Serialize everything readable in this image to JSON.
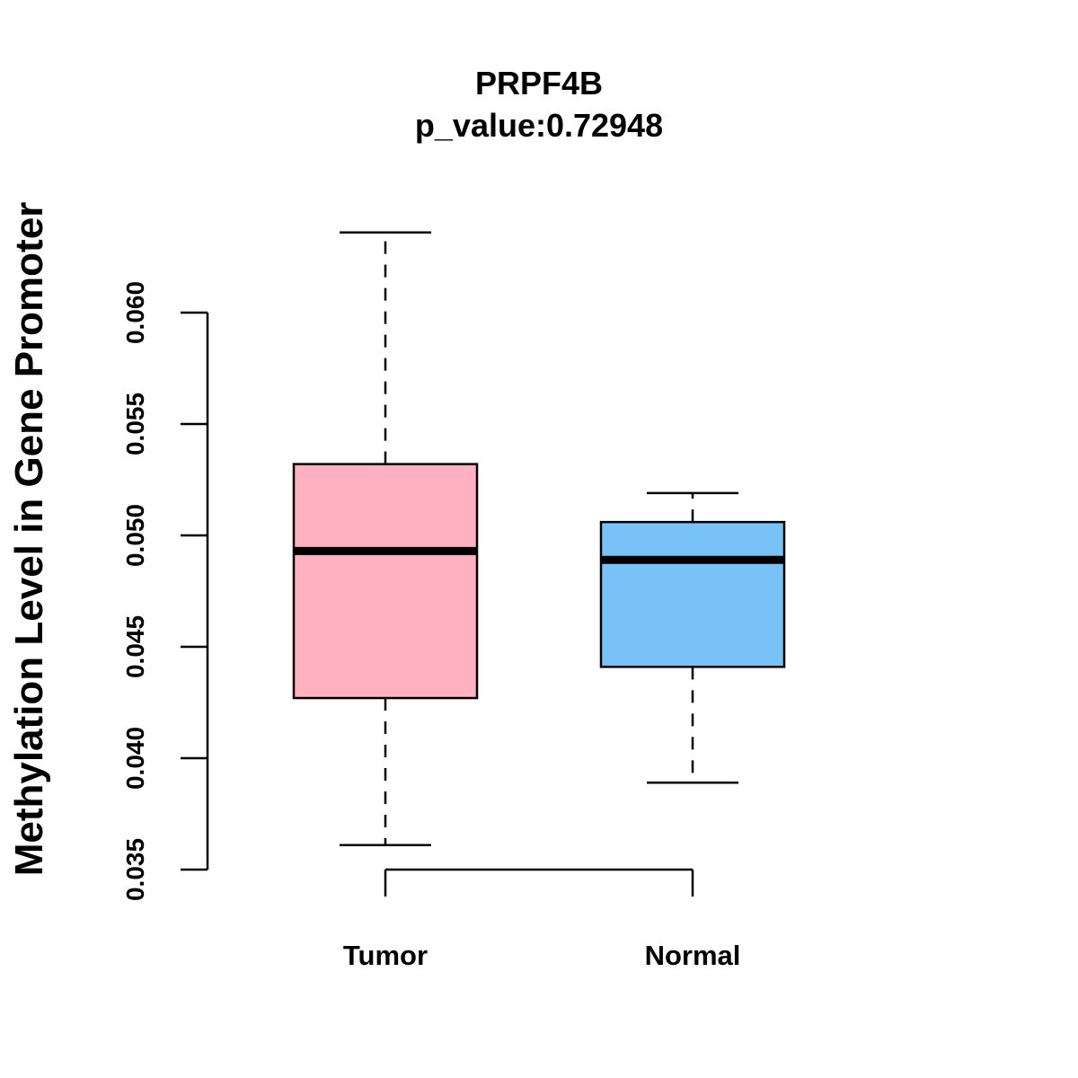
{
  "chart_data": {
    "type": "boxplot",
    "title": "PRPF4B",
    "subtitle": "p_value:0.72948",
    "xlabel": "",
    "ylabel": "Methylation Level in Gene Promoter",
    "ylim": [
      0.035,
      0.06
    ],
    "yticks": [
      0.035,
      0.04,
      0.045,
      0.05,
      0.055,
      0.06
    ],
    "ytick_labels": [
      "0.035",
      "0.040",
      "0.045",
      "0.050",
      "0.055",
      "0.060"
    ],
    "categories": [
      "Tumor",
      "Normal"
    ],
    "series": [
      {
        "name": "Tumor",
        "color": "#FFB0C1",
        "whisker_low": 0.0361,
        "q1": 0.0427,
        "median": 0.0493,
        "q3": 0.0532,
        "whisker_high": 0.0636
      },
      {
        "name": "Normal",
        "color": "#79C2F8",
        "whisker_low": 0.0389,
        "q1": 0.0441,
        "median": 0.0489,
        "q3": 0.0506,
        "whisker_high": 0.0519
      }
    ],
    "grid": false,
    "legend": "none"
  }
}
